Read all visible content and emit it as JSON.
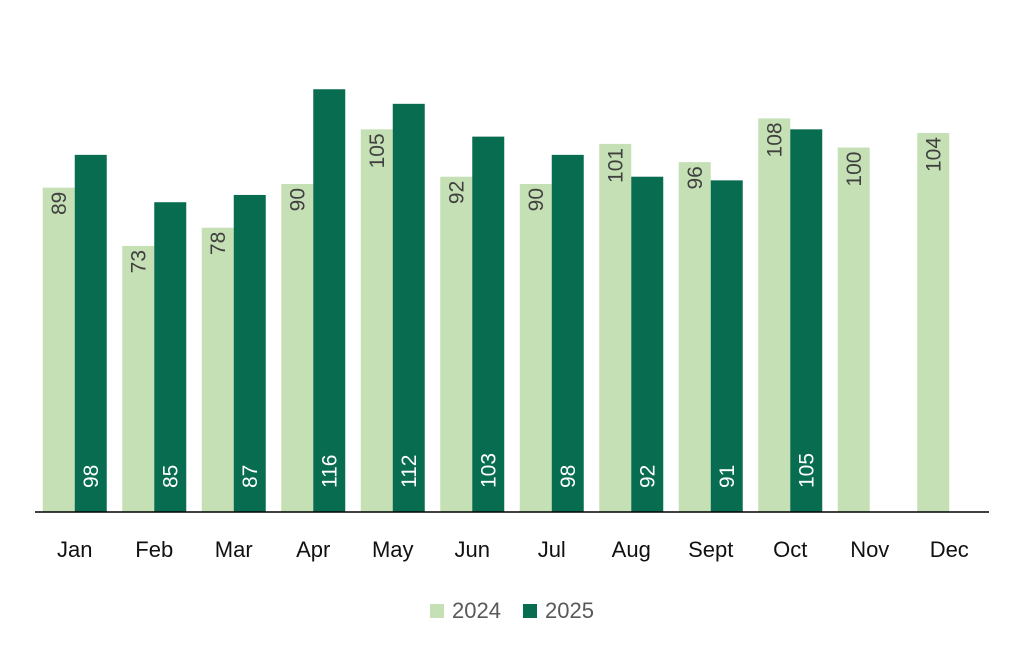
{
  "chart_data": {
    "type": "bar",
    "categories": [
      "Jan",
      "Feb",
      "Mar",
      "Apr",
      "May",
      "Jun",
      "Jul",
      "Aug",
      "Sept",
      "Oct",
      "Nov",
      "Dec"
    ],
    "series": [
      {
        "name": "2024",
        "color": "#c5e0b4",
        "label_color": "#404040",
        "values": [
          89,
          73,
          78,
          90,
          105,
          92,
          90,
          101,
          96,
          108,
          100,
          104
        ]
      },
      {
        "name": "2025",
        "color": "#086d50",
        "label_color": "#ffffff",
        "values": [
          98,
          85,
          87,
          116,
          112,
          103,
          98,
          92,
          91,
          105,
          null,
          null
        ]
      }
    ],
    "ylim": [
      0,
      135
    ],
    "grid": false,
    "legend_position": "bottom"
  }
}
